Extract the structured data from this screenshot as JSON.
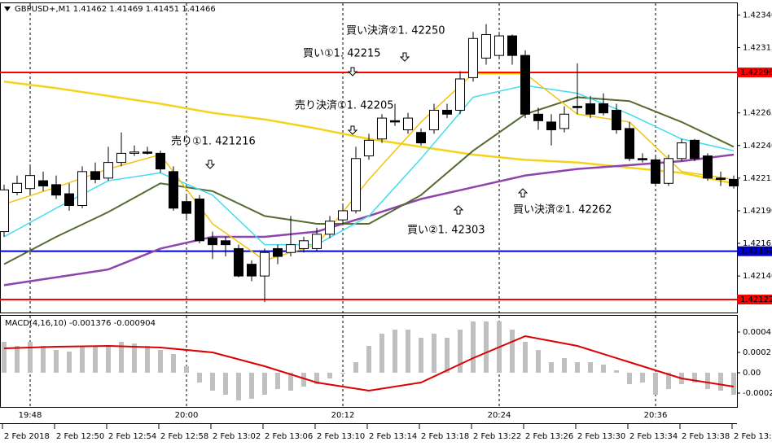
{
  "header": "GBPUSD+,M1  1.41462 1.41469 1.41451 1.41466",
  "time_axis": [
    "19:48",
    "20:00",
    "20:12",
    "20:24",
    "20:36"
  ],
  "date_axis": [
    "2 Feb 2018",
    "2 Feb 12:50",
    "2 Feb 12:54",
    "2 Feb 12:58",
    "2 Feb 13:02",
    "2 Feb 13:06",
    "2 Feb 13:10",
    "2 Feb 13:14",
    "2 Feb 13:18",
    "2 Feb 13:22",
    "2 Feb 13:26",
    "2 Feb 13:30",
    "2 Feb 13:34",
    "2 Feb 13:38",
    "2 Feb 13:42"
  ],
  "chart_data": [
    {
      "type": "candlestick",
      "ylim": [
        1.42112,
        1.42349
      ],
      "yticks": [
        {
          "value": 1.4234,
          "label": "1.42340"
        },
        1.42315,
        1.42265,
        {
          "value": 1.4224,
          "label": "1.42240"
        },
        1.42215,
        {
          "value": 1.4219,
          "label": "1.42190"
        },
        1.42165,
        {
          "value": 1.4214,
          "label": "1.42140"
        }
      ],
      "open": [
        1.42174,
        1.42204,
        1.42207,
        1.42213,
        1.4221,
        1.42203,
        1.42194,
        1.4222,
        1.42215,
        1.42227,
        1.42234,
        1.42235,
        1.42234,
        1.4222,
        1.42197,
        1.42199,
        1.42169,
        1.42167,
        1.42161,
        1.42149,
        1.4214,
        1.42161,
        1.42158,
        1.42161,
        1.42161,
        1.42172,
        1.42183,
        1.4219,
        1.42232,
        1.42245,
        1.42259,
        1.42252,
        1.4225,
        1.42252,
        1.42267,
        1.42267,
        1.42292,
        1.42307,
        1.42309,
        1.42324,
        1.42309,
        1.42264,
        1.42258,
        1.42253,
        1.4227,
        1.42272,
        1.42272,
        1.42267,
        1.42253,
        1.4223,
        1.42229,
        1.42211,
        1.4223,
        1.42244,
        1.42232,
        1.42215,
        1.42214
      ],
      "high": [
        1.4221,
        1.42217,
        1.42224,
        1.4222,
        1.42217,
        1.42211,
        1.42224,
        1.42227,
        1.42239,
        1.4225,
        1.4224,
        1.42239,
        1.42236,
        1.42224,
        1.42202,
        1.42202,
        1.42174,
        1.4217,
        1.42164,
        1.42152,
        1.42161,
        1.42164,
        1.42186,
        1.4217,
        1.42177,
        1.42186,
        1.42195,
        1.42239,
        1.42249,
        1.42264,
        1.42272,
        1.42265,
        1.42253,
        1.42272,
        1.42272,
        1.42297,
        1.42327,
        1.42333,
        1.42327,
        1.42325,
        1.42313,
        1.42269,
        1.42264,
        1.4227,
        1.42303,
        1.42278,
        1.4228,
        1.42272,
        1.42258,
        1.42234,
        1.42233,
        1.42233,
        1.42245,
        1.42245,
        1.42234,
        1.4222,
        1.42217
      ],
      "low": [
        1.4217,
        1.42202,
        1.42202,
        1.42205,
        1.42199,
        1.4219,
        1.42192,
        1.42211,
        1.42213,
        1.42224,
        1.42232,
        1.42233,
        1.42219,
        1.4219,
        1.42184,
        1.42165,
        1.42153,
        1.42155,
        1.42139,
        1.42136,
        1.4212,
        1.42149,
        1.42155,
        1.42158,
        1.42159,
        1.42169,
        1.4218,
        1.42188,
        1.42229,
        1.42242,
        1.42255,
        1.42249,
        1.4224,
        1.42249,
        1.42261,
        1.42264,
        1.42289,
        1.42302,
        1.42307,
        1.42302,
        1.42261,
        1.42252,
        1.4224,
        1.4225,
        1.42264,
        1.42261,
        1.42263,
        1.42249,
        1.42228,
        1.42227,
        1.42209,
        1.42209,
        1.42228,
        1.42228,
        1.42213,
        1.42209,
        1.42207
      ],
      "close": [
        1.42206,
        1.42211,
        1.42217,
        1.42209,
        1.42202,
        1.42194,
        1.4222,
        1.42214,
        1.42227,
        1.42234,
        1.42235,
        1.42234,
        1.42222,
        1.42192,
        1.42188,
        1.42167,
        1.42164,
        1.42164,
        1.4214,
        1.4214,
        1.42158,
        1.42155,
        1.42164,
        1.42167,
        1.42172,
        1.42182,
        1.4219,
        1.4223,
        1.42244,
        1.42261,
        1.42258,
        1.42261,
        1.42242,
        1.42267,
        1.42264,
        1.42291,
        1.42322,
        1.42325,
        1.42324,
        1.42309,
        1.42264,
        1.42259,
        1.42252,
        1.42264,
        1.42269,
        1.42264,
        1.42265,
        1.42252,
        1.4223,
        1.42229,
        1.42211,
        1.4223,
        1.42242,
        1.4223,
        1.42215,
        1.42214,
        1.42209
      ],
      "lines": [
        {
          "color": "#f5d31a",
          "width": 2.5,
          "x": [
            0,
            4,
            8,
            12,
            16,
            20,
            24,
            28,
            32,
            36,
            40,
            44,
            48,
            52,
            56
          ],
          "values": [
            1.42289,
            1.42284,
            1.42278,
            1.42272,
            1.42265,
            1.4226,
            1.42253,
            1.42245,
            1.42239,
            1.42233,
            1.42229,
            1.42227,
            1.42223,
            1.42219,
            1.42211
          ]
        },
        {
          "color": "#8e44ad",
          "width": 2.5,
          "x": [
            0,
            4,
            8,
            12,
            16,
            20,
            24,
            28,
            32,
            36,
            40,
            44,
            48,
            52,
            56
          ],
          "values": [
            1.42133,
            1.42139,
            1.42145,
            1.42161,
            1.4217,
            1.4217,
            1.42174,
            1.42186,
            1.42199,
            1.42208,
            1.42217,
            1.42222,
            1.42225,
            1.42228,
            1.42233
          ]
        },
        {
          "color": "#556b2f",
          "width": 2,
          "x": [
            0,
            4,
            8,
            12,
            16,
            20,
            24,
            28,
            32,
            36,
            40,
            44,
            48,
            52,
            56
          ],
          "values": [
            1.42149,
            1.4217,
            1.42189,
            1.42211,
            1.42205,
            1.42186,
            1.4218,
            1.4218,
            1.42202,
            1.42236,
            1.42264,
            1.42277,
            1.42274,
            1.42258,
            1.42239
          ]
        },
        {
          "color": "#3fdcef",
          "width": 1.5,
          "x": [
            0,
            4,
            8,
            12,
            16,
            20,
            24,
            28,
            32,
            36,
            40,
            44,
            48,
            52,
            56
          ],
          "values": [
            1.4217,
            1.42192,
            1.42213,
            1.42219,
            1.42202,
            1.42164,
            1.42164,
            1.42186,
            1.4223,
            1.42277,
            1.42286,
            1.4228,
            1.42264,
            1.42245,
            1.42236
          ]
        },
        {
          "color": "#f2c40f",
          "width": 1.5,
          "x": [
            0,
            4,
            8,
            12,
            16,
            20,
            24,
            28,
            32,
            36,
            40,
            44,
            48,
            52,
            56
          ],
          "values": [
            1.42195,
            1.42208,
            1.42222,
            1.42233,
            1.4218,
            1.42152,
            1.42164,
            1.42214,
            1.42258,
            1.42295,
            1.42295,
            1.42264,
            1.42258,
            1.4222,
            1.42214
          ]
        }
      ],
      "hlines": [
        {
          "value": 1.42296,
          "color": "#ff0000"
        },
        {
          "value": 1.42159,
          "color": "#0000cc"
        },
        {
          "value": 1.42122,
          "color": "#ff0000"
        }
      ],
      "annotations": [
        {
          "text": "買い決済②1. 42250",
          "color": "#000000"
        },
        {
          "text": "買い①1. 42215",
          "color": "#000000"
        },
        {
          "text": "売り決済①1. 42205",
          "color": "#e00000"
        },
        {
          "text": "売り①1. 421216",
          "color": "#e00000"
        },
        {
          "text": "買い②1. 42303",
          "color": "#000000"
        },
        {
          "text": "買い決済②1. 42262",
          "color": "#000000"
        }
      ]
    },
    {
      "type": "bar",
      "title": "MACD(4,16,10) -0.001376 -0.000904",
      "ylim": [
        -0.000288,
        0.000552
      ],
      "yticks": [
        0.0004,
        0.0002,
        {
          "value": 0,
          "label": "0.00"
        },
        -0.0002
      ],
      "color": "#c0c0c0",
      "values": [
        0.000304,
        0.000264,
        0.000304,
        0.000264,
        0.000224,
        0.000208,
        0.000264,
        0.000264,
        0.000264,
        0.000304,
        0.000288,
        0.000264,
        0.000224,
        0.000184,
        6.4e-05,
        -9.6e-05,
        -0.000176,
        -0.000216,
        -0.000272,
        -0.000256,
        -0.000216,
        -0.00016,
        -0.000176,
        -0.000136,
        -0.000112,
        -5.6e-05,
        -8e-06,
        0.000104,
        0.000264,
        0.000384,
        0.000424,
        0.000424,
        0.000344,
        0.000384,
        0.000344,
        0.000424,
        0.000504,
        0.000504,
        0.000504,
        0.000424,
        0.000304,
        0.000224,
        0.000104,
        0.000144,
        0.000104,
        0.000104,
        8e-05,
        2.4e-05,
        -0.000112,
        -9.6e-05,
        -0.000216,
        -0.00016,
        -0.000112,
        -9.6e-05,
        -0.00016,
        -0.000176,
        -0.000216
      ],
      "signal": {
        "color": "#dd0000",
        "x": [
          0,
          4,
          8,
          12,
          16,
          20,
          24,
          28,
          32,
          36,
          40,
          44,
          48,
          52,
          56
        ],
        "values": [
          0.00024,
          0.000256,
          0.000264,
          0.000248,
          0.0002,
          6.4e-05,
          -9.6e-05,
          -0.000176,
          -9.6e-05,
          0.000144,
          0.00036,
          0.000264,
          0.000104,
          -5.6e-05,
          -0.000136
        ]
      }
    }
  ]
}
